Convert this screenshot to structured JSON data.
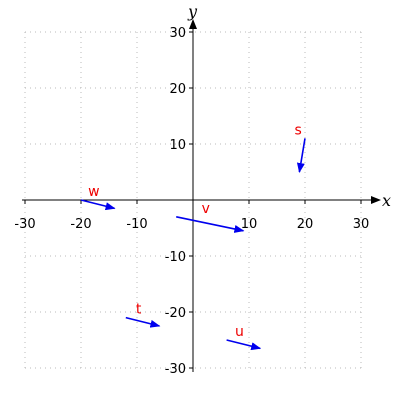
{
  "chart_data": {
    "type": "vector_field",
    "xlabel": "x",
    "ylabel": "y",
    "xlim": [
      -30,
      30
    ],
    "ylim": [
      -30,
      30
    ],
    "xticks": [
      -30,
      -20,
      -10,
      10,
      20,
      30
    ],
    "yticks": [
      -30,
      -20,
      -10,
      10,
      20,
      30
    ],
    "grid": true,
    "colors": {
      "vector": "#0000ee",
      "label": "#ee0000",
      "grid": "#bbbbbb",
      "axis": "#000000"
    },
    "vectors": [
      {
        "name": "s",
        "start": [
          20,
          11
        ],
        "end": [
          19,
          5
        ]
      },
      {
        "name": "w",
        "start": [
          -20,
          0
        ],
        "end": [
          -14,
          -1.5
        ]
      },
      {
        "name": "v",
        "start": [
          -3,
          -3
        ],
        "end": [
          9,
          -5.5
        ]
      },
      {
        "name": "t",
        "start": [
          -12,
          -21
        ],
        "end": [
          -6,
          -22.5
        ]
      },
      {
        "name": "u",
        "start": [
          6,
          -25
        ],
        "end": [
          12,
          -26.5
        ]
      }
    ]
  }
}
